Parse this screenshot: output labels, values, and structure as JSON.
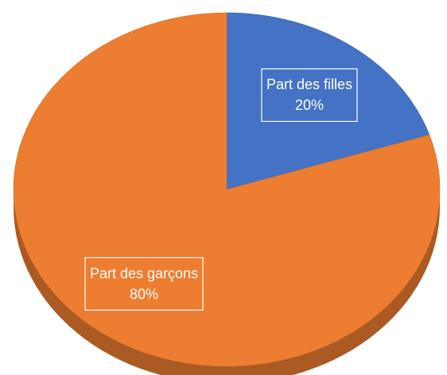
{
  "chart_data": {
    "type": "pie",
    "categories": [
      "Part des filles",
      "Part des garçons"
    ],
    "values": [
      20,
      80
    ],
    "value_labels": [
      "20%",
      "80%"
    ],
    "colors": [
      "#4472c4",
      "#ed7d31"
    ]
  }
}
